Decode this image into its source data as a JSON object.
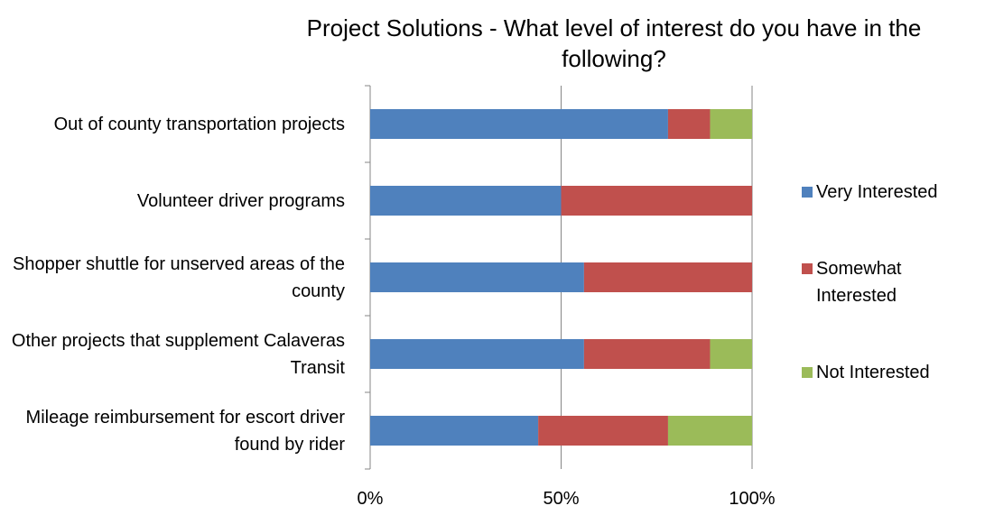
{
  "chart_data": {
    "type": "stacked_bar_horizontal",
    "title": "Project Solutions - What level of interest do you have in the following?",
    "categories": [
      "Out of county transportation projects",
      "Volunteer driver programs",
      "Shopper shuttle for unserved areas of the county",
      "Other projects that supplement Calaveras Transit",
      "Mileage reimbursement for escort driver found by rider"
    ],
    "series": [
      {
        "name": "Very Interested",
        "color": "#4f81bd",
        "values": [
          78,
          50,
          56,
          56,
          44
        ]
      },
      {
        "name": "Somewhat Interested",
        "color": "#c0504d",
        "values": [
          11,
          50,
          44,
          33,
          34
        ]
      },
      {
        "name": "Not Interested",
        "color": "#9bbb59",
        "values": [
          11,
          0,
          0,
          11,
          22
        ]
      }
    ],
    "xlim": [
      0,
      100
    ],
    "xticks": [
      {
        "value": 0,
        "label": "0%"
      },
      {
        "value": 50,
        "label": "50%"
      },
      {
        "value": 100,
        "label": "100%"
      }
    ],
    "grid": true,
    "legend": "right"
  }
}
